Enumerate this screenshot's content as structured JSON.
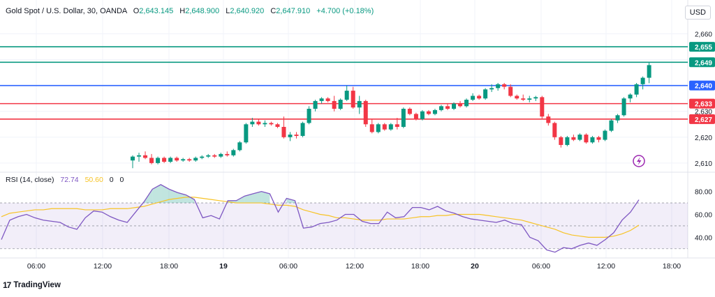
{
  "header": {
    "symbol": "Gold Spot / U.S. Dollar, 30, OANDA",
    "open_label": "O",
    "open": "2,643.145",
    "high_label": "H",
    "high": "2,648.900",
    "low_label": "L",
    "low": "2,640.920",
    "close_label": "C",
    "close": "2,647.910",
    "change": "+4.700 (+0.18%)"
  },
  "currency_button": "USD",
  "rsi_header": {
    "label": "RSI (14, close)",
    "rsi": "72.74",
    "ma": "50.60",
    "v3": "0",
    "v4": "0"
  },
  "brand": {
    "logo_mark": "17",
    "name": "TradingView"
  },
  "colors": {
    "up": "#089981",
    "down": "#f23645",
    "rsi": "#7e57c2",
    "rsi_ma": "#f7c325",
    "blue_level": "#2962ff"
  },
  "icons": {
    "alert": "lightning-alert-icon"
  },
  "chart_data": [
    {
      "type": "candlestick",
      "title": "Gold Spot / U.S. Dollar, 30, OANDA",
      "y_axis_ticks": [
        "2,660",
        "2,650",
        "2,640",
        "2,630",
        "2,620",
        "2,610"
      ],
      "x_axis_ticks": [
        "06:00",
        "12:00",
        "18:00",
        "19",
        "06:00",
        "12:00",
        "18:00",
        "20",
        "06:00",
        "12:00",
        "18:00"
      ],
      "horizontal_levels": [
        {
          "label": "2,655",
          "value": 2655,
          "color": "#089981"
        },
        {
          "label": "2,649",
          "value": 2649,
          "color": "#089981"
        },
        {
          "label": "2,640",
          "value": 2640,
          "color": "#2962ff"
        },
        {
          "label": "2,633",
          "value": 2633,
          "color": "#f23645"
        },
        {
          "label": "2,627",
          "value": 2627,
          "color": "#f23645"
        }
      ],
      "ylim": [
        2607,
        2665
      ],
      "start_bar_index": 0,
      "ohlc": [
        [
          2611.0,
          2613.0,
          2608.0,
          2612.5
        ],
        [
          2612.5,
          2614.0,
          2610.5,
          2613.0
        ],
        [
          2613.0,
          2614.5,
          2611.5,
          2612.0
        ],
        [
          2612.0,
          2613.5,
          2609.5,
          2610.0
        ],
        [
          2610.0,
          2612.5,
          2609.5,
          2612.0
        ],
        [
          2612.0,
          2612.5,
          2610.0,
          2610.5
        ],
        [
          2610.5,
          2612.5,
          2610.0,
          2612.0
        ],
        [
          2612.0,
          2612.5,
          2610.5,
          2611.0
        ],
        [
          2611.0,
          2612.0,
          2610.5,
          2611.5
        ],
        [
          2611.5,
          2612.0,
          2610.5,
          2611.0
        ],
        [
          2611.0,
          2612.5,
          2610.5,
          2612.0
        ],
        [
          2612.0,
          2613.0,
          2611.5,
          2612.5
        ],
        [
          2612.5,
          2613.5,
          2612.0,
          2613.0
        ],
        [
          2613.0,
          2613.5,
          2612.0,
          2612.5
        ],
        [
          2612.5,
          2614.0,
          2612.0,
          2613.5
        ],
        [
          2613.5,
          2614.5,
          2612.5,
          2613.0
        ],
        [
          2613.0,
          2615.5,
          2612.5,
          2615.0
        ],
        [
          2615.0,
          2618.5,
          2614.5,
          2618.0
        ],
        [
          2618.0,
          2625.5,
          2617.5,
          2625.0
        ],
        [
          2625.0,
          2627.5,
          2624.0,
          2626.0
        ],
        [
          2626.0,
          2627.0,
          2624.5,
          2625.0
        ],
        [
          2625.0,
          2626.5,
          2624.0,
          2625.5
        ],
        [
          2625.5,
          2626.0,
          2624.5,
          2625.0
        ],
        [
          2625.0,
          2625.5,
          2623.5,
          2624.0
        ],
        [
          2624.0,
          2628.0,
          2619.5,
          2620.0
        ],
        [
          2620.0,
          2622.0,
          2618.5,
          2621.0
        ],
        [
          2621.0,
          2622.0,
          2619.5,
          2620.5
        ],
        [
          2620.5,
          2626.0,
          2620.0,
          2625.5
        ],
        [
          2625.5,
          2632.0,
          2625.0,
          2631.0
        ],
        [
          2631.0,
          2634.5,
          2630.0,
          2634.0
        ],
        [
          2634.0,
          2635.5,
          2633.0,
          2635.0
        ],
        [
          2635.0,
          2635.5,
          2633.5,
          2634.0
        ],
        [
          2634.0,
          2636.0,
          2630.0,
          2631.0
        ],
        [
          2631.0,
          2635.0,
          2630.5,
          2634.5
        ],
        [
          2634.5,
          2640.0,
          2634.0,
          2638.0
        ],
        [
          2638.0,
          2639.5,
          2631.0,
          2631.5
        ],
        [
          2631.5,
          2636.0,
          2629.0,
          2634.0
        ],
        [
          2634.0,
          2634.5,
          2624.0,
          2625.0
        ],
        [
          2625.0,
          2627.0,
          2621.5,
          2622.0
        ],
        [
          2622.0,
          2625.5,
          2621.5,
          2625.0
        ],
        [
          2625.0,
          2625.5,
          2622.5,
          2623.0
        ],
        [
          2623.0,
          2625.5,
          2622.5,
          2625.0
        ],
        [
          2625.0,
          2627.5,
          2623.0,
          2624.0
        ],
        [
          2624.0,
          2631.5,
          2623.5,
          2631.0
        ],
        [
          2631.0,
          2631.5,
          2628.5,
          2629.0
        ],
        [
          2629.0,
          2629.5,
          2626.5,
          2627.0
        ],
        [
          2627.0,
          2630.5,
          2626.5,
          2630.0
        ],
        [
          2630.0,
          2630.5,
          2628.5,
          2629.0
        ],
        [
          2629.0,
          2631.0,
          2628.5,
          2630.5
        ],
        [
          2630.5,
          2632.5,
          2630.0,
          2632.0
        ],
        [
          2632.0,
          2633.0,
          2630.5,
          2631.0
        ],
        [
          2631.0,
          2633.5,
          2630.5,
          2633.0
        ],
        [
          2633.0,
          2634.0,
          2631.5,
          2632.0
        ],
        [
          2632.0,
          2635.0,
          2631.5,
          2634.5
        ],
        [
          2634.5,
          2637.0,
          2634.0,
          2636.0
        ],
        [
          2636.0,
          2636.5,
          2634.5,
          2635.0
        ],
        [
          2635.0,
          2639.0,
          2634.5,
          2638.5
        ],
        [
          2638.5,
          2640.5,
          2637.5,
          2639.0
        ],
        [
          2639.0,
          2641.0,
          2638.0,
          2640.5
        ],
        [
          2640.5,
          2641.0,
          2638.5,
          2639.5
        ],
        [
          2639.5,
          2640.5,
          2635.5,
          2636.0
        ],
        [
          2636.0,
          2636.5,
          2634.5,
          2635.0
        ],
        [
          2635.0,
          2636.5,
          2634.0,
          2634.5
        ],
        [
          2634.5,
          2636.0,
          2633.5,
          2635.0
        ],
        [
          2635.0,
          2636.0,
          2634.0,
          2635.5
        ],
        [
          2635.5,
          2636.0,
          2627.0,
          2628.0
        ],
        [
          2628.0,
          2629.0,
          2624.5,
          2625.5
        ],
        [
          2625.5,
          2626.0,
          2619.0,
          2620.0
        ],
        [
          2620.0,
          2620.5,
          2616.0,
          2617.0
        ],
        [
          2617.0,
          2620.5,
          2616.5,
          2620.0
        ],
        [
          2620.0,
          2621.0,
          2618.5,
          2619.0
        ],
        [
          2619.0,
          2621.5,
          2618.5,
          2621.0
        ],
        [
          2621.0,
          2621.5,
          2617.5,
          2618.0
        ],
        [
          2618.0,
          2620.5,
          2617.5,
          2620.0
        ],
        [
          2620.0,
          2620.5,
          2618.0,
          2619.0
        ],
        [
          2619.0,
          2623.0,
          2618.5,
          2622.5
        ],
        [
          2622.5,
          2627.0,
          2622.0,
          2626.5
        ],
        [
          2626.5,
          2629.0,
          2625.5,
          2628.5
        ],
        [
          2628.5,
          2635.5,
          2628.0,
          2635.0
        ],
        [
          2635.0,
          2637.0,
          2633.5,
          2636.5
        ],
        [
          2636.5,
          2641.0,
          2635.5,
          2640.5
        ],
        [
          2640.5,
          2643.5,
          2638.5,
          2643.0
        ],
        [
          2643.0,
          2648.9,
          2640.9,
          2647.9
        ]
      ]
    },
    {
      "type": "line",
      "title": "RSI (14, close)",
      "series": [
        {
          "name": "RSI",
          "color": "#7e57c2",
          "values": [
            38,
            55,
            58,
            60,
            57,
            55,
            54,
            53,
            49,
            47,
            57,
            63,
            62,
            58,
            55,
            53,
            62,
            71,
            82,
            86,
            82,
            79,
            77,
            73,
            57,
            59,
            56,
            72,
            72,
            76,
            78,
            80,
            78,
            62,
            74,
            72,
            48,
            49,
            52,
            53,
            55,
            60,
            60,
            54,
            52,
            52,
            62,
            57,
            58,
            66,
            66,
            64,
            67,
            63,
            61,
            58,
            56,
            55,
            54,
            53,
            55,
            52,
            51,
            40,
            37,
            29,
            27,
            31,
            30,
            33,
            35,
            33,
            38,
            44,
            55,
            62,
            72.74
          ]
        },
        {
          "name": "RSI-based MA",
          "color": "#f7c325",
          "values": [
            58,
            61,
            62,
            63,
            64,
            64,
            65,
            65,
            65,
            65,
            64,
            64,
            64,
            65,
            65,
            65,
            66,
            67,
            69,
            71,
            73,
            74,
            75,
            75,
            74,
            73,
            72,
            71,
            70,
            70,
            70,
            70,
            69,
            68,
            68,
            67,
            64,
            62,
            60,
            59,
            57,
            57,
            56,
            55,
            55,
            55,
            56,
            56,
            56,
            57,
            58,
            58,
            59,
            59,
            60,
            60,
            60,
            60,
            59,
            58,
            57,
            56,
            55,
            53,
            51,
            49,
            47,
            44,
            42,
            41,
            40,
            40,
            40,
            41,
            43,
            46,
            50.6
          ]
        }
      ],
      "y_axis_ticks": [
        "80.00",
        "60.00",
        "40.00"
      ],
      "bands": {
        "upper": 70,
        "middle": 50,
        "lower": 30
      },
      "ylim": [
        25,
        95
      ]
    }
  ]
}
